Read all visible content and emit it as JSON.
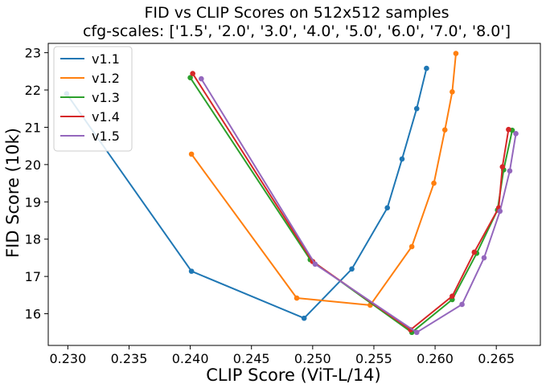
{
  "chart_data": {
    "type": "line",
    "title": "FID vs CLIP Scores on 512x512 samples",
    "subtitle": "cfg-scales: ['1.5', '2.0', '3.0', '4.0', '5.0', '6.0', '7.0', '8.0']",
    "xlabel": "CLIP Score (ViT-L/14)",
    "ylabel": "FID Score (10k)",
    "xlim": [
      0.2284,
      0.2686
    ],
    "ylim": [
      15.15,
      23.25
    ],
    "xticks": [
      "0.230",
      "0.235",
      "0.240",
      "0.245",
      "0.250",
      "0.255",
      "0.260",
      "0.265"
    ],
    "xtick_values": [
      0.23,
      0.235,
      0.24,
      0.245,
      0.25,
      0.255,
      0.26,
      0.265
    ],
    "yticks": [
      "16",
      "17",
      "18",
      "19",
      "20",
      "21",
      "22",
      "23"
    ],
    "ytick_values": [
      16,
      17,
      18,
      19,
      20,
      21,
      22,
      23
    ],
    "grid": false,
    "legend_position": "top-left",
    "series": [
      {
        "name": "v1.1",
        "color": "#1f77b4",
        "points": [
          [
            0.2299,
            21.9
          ],
          [
            0.2401,
            17.14
          ],
          [
            0.2493,
            15.88
          ],
          [
            0.2532,
            17.2
          ],
          [
            0.2561,
            18.84
          ],
          [
            0.2573,
            20.15
          ],
          [
            0.2585,
            21.5
          ],
          [
            0.2593,
            22.58
          ]
        ]
      },
      {
        "name": "v1.2",
        "color": "#ff7f0e",
        "points": [
          [
            0.2401,
            20.28
          ],
          [
            0.2487,
            16.42
          ],
          [
            0.2547,
            16.23
          ],
          [
            0.2581,
            17.8
          ],
          [
            0.2599,
            19.5
          ],
          [
            0.2608,
            20.93
          ],
          [
            0.2614,
            21.95
          ],
          [
            0.2617,
            22.98
          ]
        ]
      },
      {
        "name": "v1.3",
        "color": "#2ca02c",
        "points": [
          [
            0.24,
            22.33
          ],
          [
            0.2498,
            17.45
          ],
          [
            0.2581,
            15.5
          ],
          [
            0.2614,
            16.38
          ],
          [
            0.2634,
            17.62
          ],
          [
            0.2651,
            18.78
          ],
          [
            0.2656,
            19.86
          ],
          [
            0.2663,
            20.92
          ]
        ]
      },
      {
        "name": "v1.4",
        "color": "#d62728",
        "points": [
          [
            0.2402,
            22.44
          ],
          [
            0.25,
            17.4
          ],
          [
            0.258,
            15.57
          ],
          [
            0.2614,
            16.47
          ],
          [
            0.2632,
            17.65
          ],
          [
            0.2652,
            18.84
          ],
          [
            0.2655,
            19.94
          ],
          [
            0.266,
            20.94
          ]
        ]
      },
      {
        "name": "v1.5",
        "color": "#9467bd",
        "points": [
          [
            0.2409,
            22.3
          ],
          [
            0.2502,
            17.33
          ],
          [
            0.2585,
            15.5
          ],
          [
            0.2622,
            16.25
          ],
          [
            0.264,
            17.5
          ],
          [
            0.2653,
            18.75
          ],
          [
            0.2661,
            19.83
          ],
          [
            0.2666,
            20.83
          ]
        ]
      }
    ]
  }
}
